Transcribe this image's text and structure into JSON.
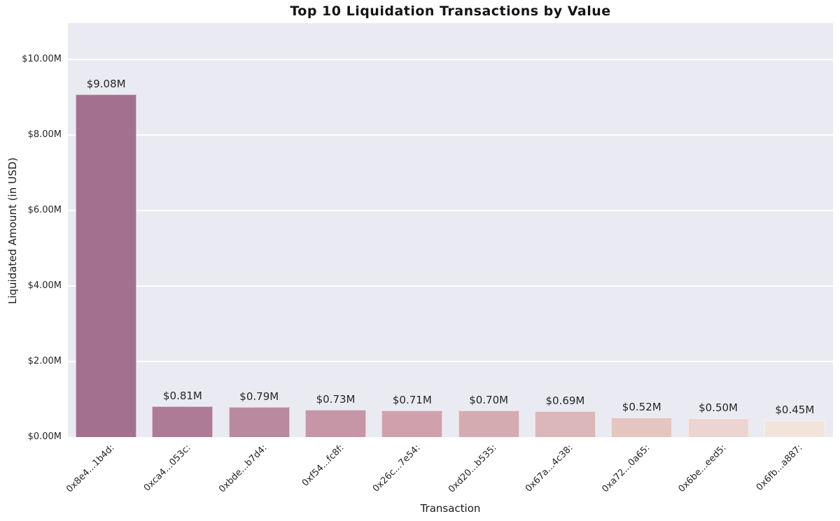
{
  "title": "Top 10 Liquidation Transactions by Value",
  "chart_data": {
    "type": "bar",
    "title": "Top 10 Liquidation Transactions by Value",
    "xlabel": "Transaction",
    "ylabel": "Liquidated Amount (in USD)",
    "categories": [
      "0x8e4...1b4d:",
      "0xca4...053c:",
      "0xbde...b7d4:",
      "0xf54...fc8f:",
      "0x26c...7e54:",
      "0xd20...b535:",
      "0x67a...4c38:",
      "0xa72...0a65:",
      "0x6be...eed5:",
      "0x6fb...a887:"
    ],
    "values_millions_usd": [
      9.08,
      0.81,
      0.79,
      0.73,
      0.71,
      0.7,
      0.69,
      0.52,
      0.5,
      0.45
    ],
    "value_labels": [
      "$9.08M",
      "$0.81M",
      "$0.79M",
      "$0.73M",
      "$0.71M",
      "$0.70M",
      "$0.69M",
      "$0.52M",
      "$0.50M",
      "$0.45M"
    ],
    "bar_colors": [
      "#a4708f",
      "#ad7b96",
      "#b98a9f",
      "#c696a7",
      "#cfa1ac",
      "#d5abb2",
      "#dcb7b9",
      "#e4c5c0",
      "#ecd5d0",
      "#f2e3db"
    ],
    "ylim": [
      0,
      11
    ],
    "yticks": [
      0,
      2,
      4,
      6,
      8,
      10
    ],
    "ytick_labels": [
      "$0.00M",
      "$2.00M",
      "$4.00M",
      "$6.00M",
      "$8.00M",
      "$10.00M"
    ],
    "legend": "none",
    "grid": "horizontal-major",
    "grid_color": "#ffffff",
    "plot_background": "#eaeaf2",
    "figure_background": "#ffffff"
  }
}
